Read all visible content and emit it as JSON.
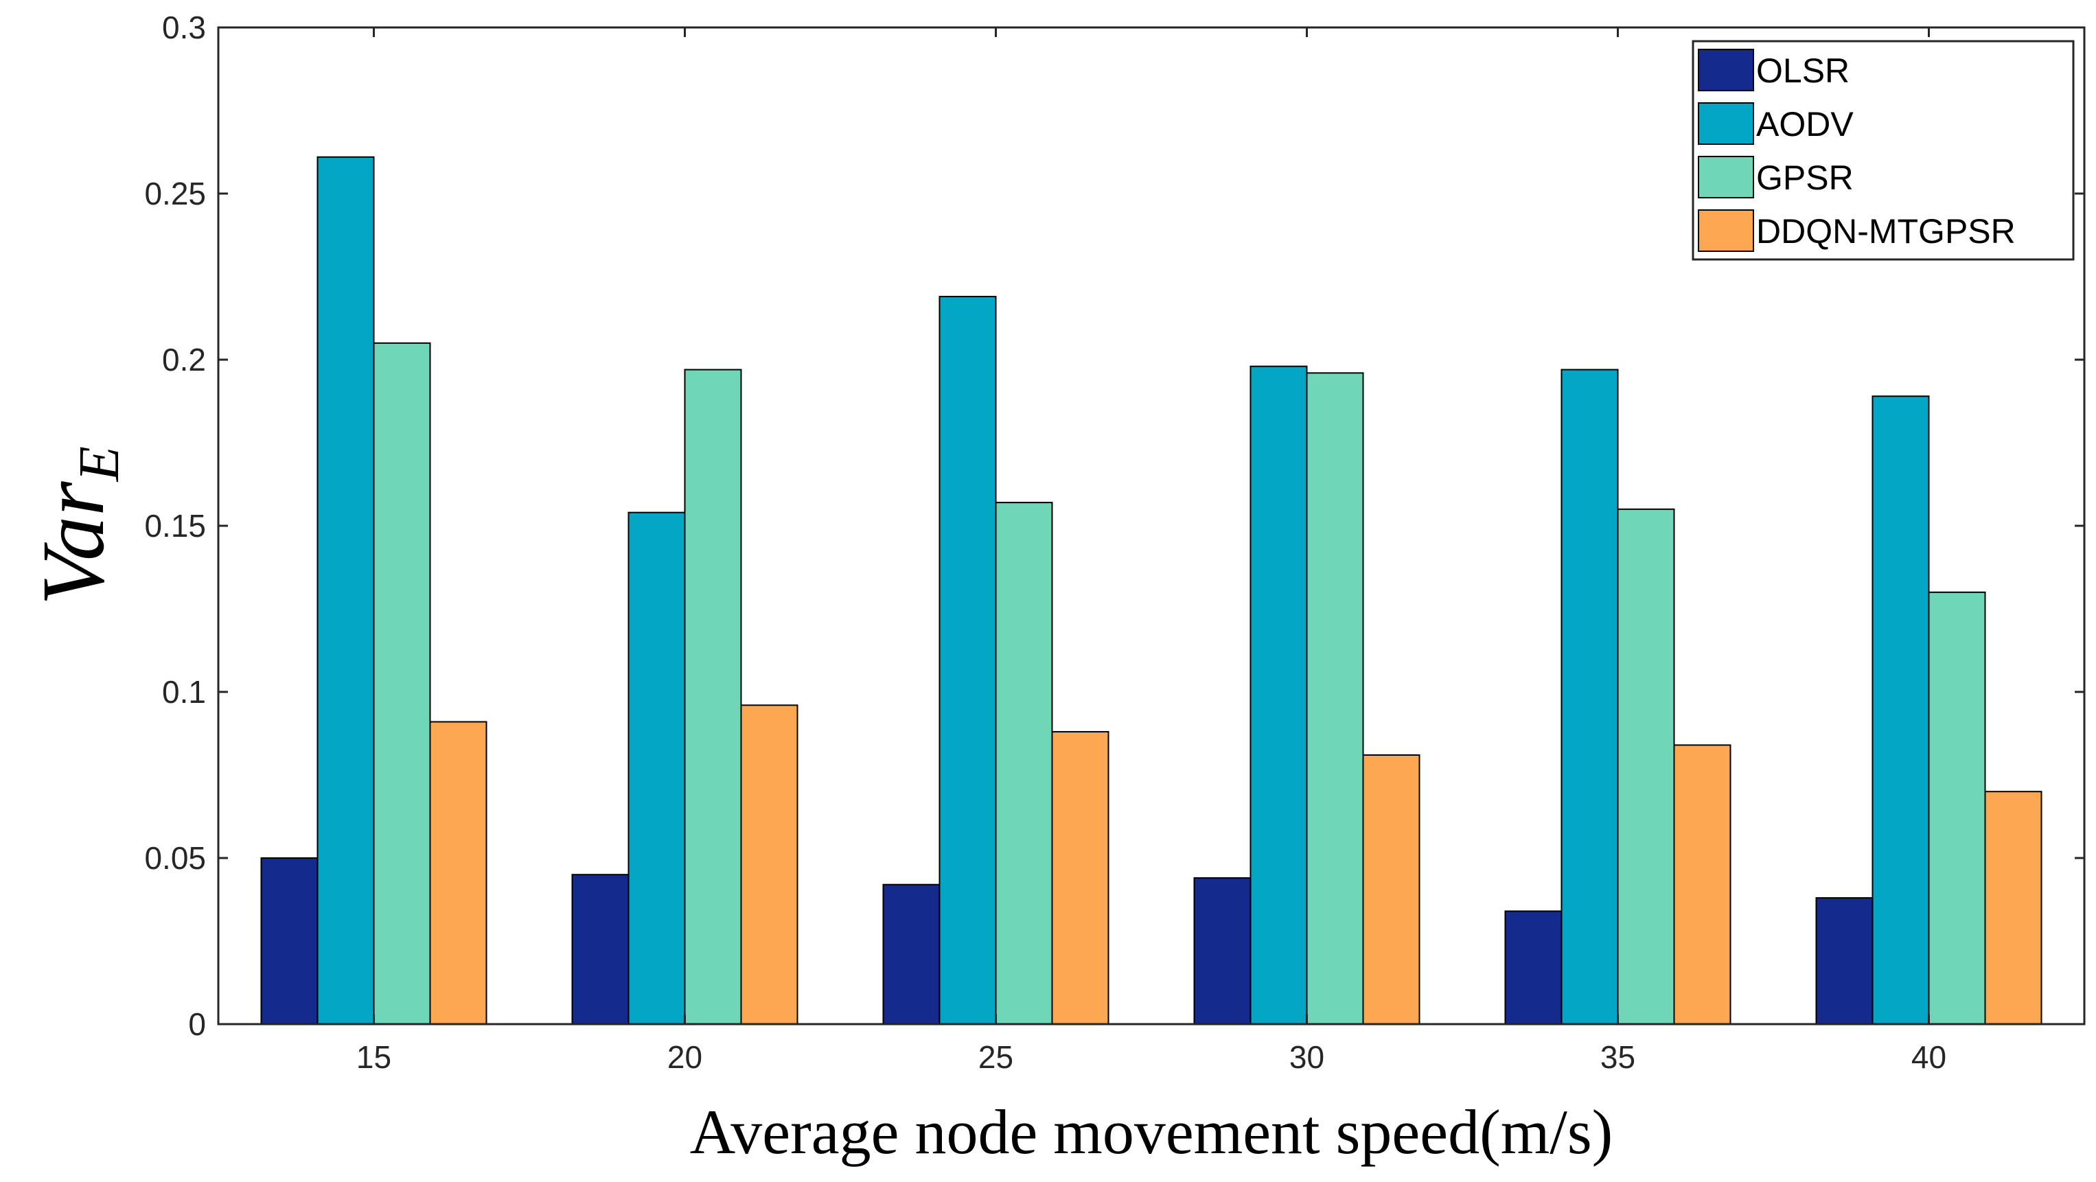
{
  "chart_data": {
    "type": "bar",
    "title": "",
    "xlabel": "Average node movement speed(m/s)",
    "ylabel": {
      "main": "Var",
      "subscript": "E"
    },
    "categories": [
      "15",
      "20",
      "25",
      "30",
      "35",
      "40"
    ],
    "ylim": [
      0,
      0.3
    ],
    "yticks": [
      {
        "value": 0,
        "label": "0"
      },
      {
        "value": 0.05,
        "label": "0.05"
      },
      {
        "value": 0.1,
        "label": "0.1"
      },
      {
        "value": 0.15,
        "label": "0.15"
      },
      {
        "value": 0.2,
        "label": "0.2"
      },
      {
        "value": 0.25,
        "label": "0.25"
      },
      {
        "value": 0.3,
        "label": "0.3"
      }
    ],
    "grid": false,
    "legend_position": "top-right",
    "series": [
      {
        "name": "OLSR",
        "color": "#142a8c",
        "values": [
          0.05,
          0.045,
          0.042,
          0.044,
          0.034,
          0.038
        ]
      },
      {
        "name": "AODV",
        "color": "#03a6c4",
        "values": [
          0.261,
          0.154,
          0.219,
          0.198,
          0.197,
          0.189
        ]
      },
      {
        "name": "GPSR",
        "color": "#6fd6b8",
        "values": [
          0.205,
          0.197,
          0.157,
          0.196,
          0.155,
          0.13
        ]
      },
      {
        "name": "DDQN-MTGPSR",
        "color": "#fca852",
        "values": [
          0.091,
          0.096,
          0.088,
          0.081,
          0.084,
          0.07
        ]
      }
    ]
  }
}
